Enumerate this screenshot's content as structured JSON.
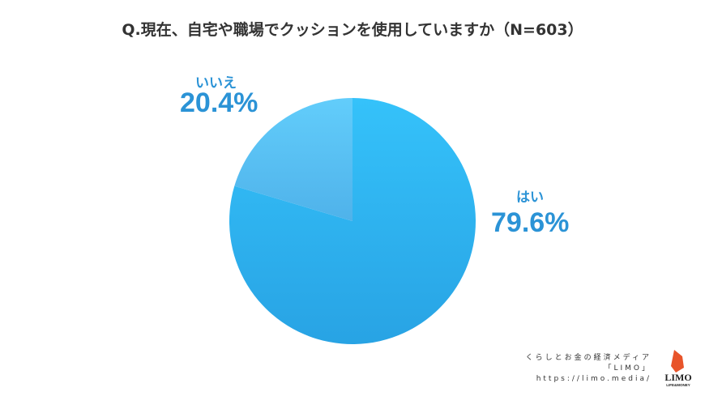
{
  "chart_data": {
    "type": "pie",
    "title": "Q.現在、自宅や職場でクッションを使用していますか（N=603）",
    "slices": [
      {
        "label": "はい",
        "value": 79.6,
        "display": "79.6%",
        "color": "#33bff8"
      },
      {
        "label": "いいえ",
        "value": 20.4,
        "display": "20.4%",
        "color": "#5ecbf9"
      }
    ],
    "start_angle": "top",
    "direction": "clockwise"
  },
  "credit": {
    "line1": "くらしとお金の経済メディア",
    "line2": "「LIMO」",
    "line3": "https://limo.media/"
  },
  "logo": {
    "text": "LIMO",
    "sub": "LIFE & MONEY",
    "color": "#e8542a"
  }
}
